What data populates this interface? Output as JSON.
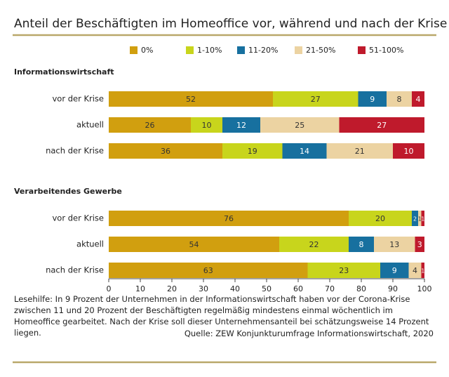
{
  "chart_data": {
    "type": "stacked-bar",
    "title": "Anteil der Beschäftigten im Homeoffice vor, während und nach der Krise",
    "categories": [
      "vor der Krise",
      "aktuell",
      "nach der Krise",
      "vor der Krise",
      "aktuell",
      "nach der Krise"
    ],
    "group_labels": [
      "Informationswirtschaft",
      null,
      null,
      "Verarbeitendes Gewerbe",
      null,
      null
    ],
    "series": [
      {
        "name": "0%",
        "color": "#d19f0f",
        "label_color": "#333",
        "values": [
          52,
          26,
          36,
          76,
          54,
          63
        ]
      },
      {
        "name": "1-10%",
        "color": "#c8d51c",
        "label_color": "#333",
        "values": [
          27,
          10,
          19,
          20,
          22,
          23
        ]
      },
      {
        "name": "11-20%",
        "color": "#17709f",
        "label_color": "#fff",
        "values": [
          9,
          12,
          14,
          2,
          8,
          9
        ]
      },
      {
        "name": "21-50%",
        "color": "#ecd3a2",
        "label_color": "#333",
        "values": [
          8,
          25,
          21,
          1,
          13,
          4
        ]
      },
      {
        "name": "51-100%",
        "color": "#bf1a2c",
        "label_color": "#fff",
        "values": [
          4,
          27,
          10,
          1,
          3,
          1
        ]
      }
    ],
    "xlim": [
      0,
      100
    ],
    "xticks": [
      0,
      10,
      20,
      30,
      40,
      50,
      60,
      70,
      80,
      90,
      100
    ],
    "note": "Lesehilfe: In 9 Prozent der Unternehmen in der Informationswirtschaft haben vor der Corona-Krise zwischen 11 und 20 Prozent der Beschäftigten regelmäßig mindestens einmal wöchentlich im Homeoffice gearbeitet. Nach der Krise soll dieser Unternehmensanteil bei schätzungsweise 14 Prozent liegen.",
    "source": "Quelle: ZEW Konjunkturumfrage Informationswirtschaft, 2020"
  }
}
